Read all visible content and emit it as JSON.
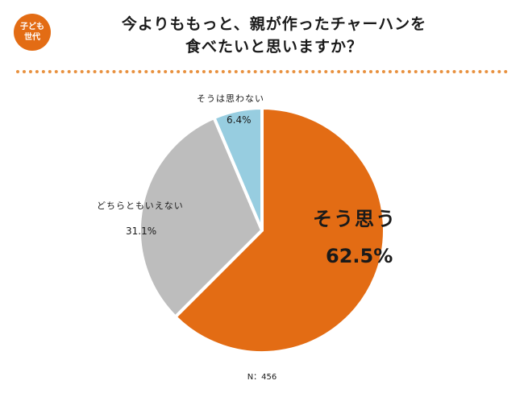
{
  "badge": {
    "line1": "子ども",
    "line2": "世代"
  },
  "title": {
    "line1": "今よりももっと、親が作ったチャーハンを",
    "line2": "食べたいと思いますか？"
  },
  "colors": {
    "accent": "#e36c14",
    "divider": "#e8913f"
  },
  "chart_data": {
    "type": "pie",
    "start_angle_deg": 0,
    "direction": "clockwise",
    "slices": [
      {
        "label": "そう思う",
        "value": 62.5,
        "value_label": "62.5%",
        "color": "#e36c14"
      },
      {
        "label": "どちらともいえない",
        "value": 31.1,
        "value_label": "31.1%",
        "color": "#bdbdbd"
      },
      {
        "label": "そうは思わない",
        "value": 6.4,
        "value_label": "6.4%",
        "color": "#97cde0"
      }
    ]
  },
  "footer": {
    "n_label": "N：456"
  }
}
